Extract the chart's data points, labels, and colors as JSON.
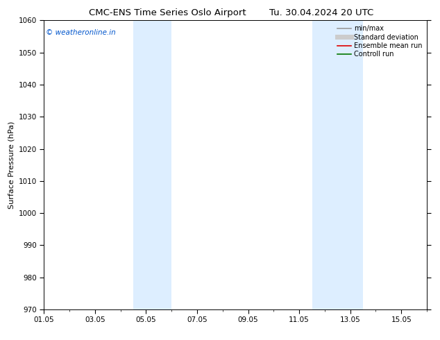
{
  "title": "CMC-ENS Time Series Oslo Airport",
  "title2": "Tu. 30.04.2024 20 UTC",
  "ylabel": "Surface Pressure (hPa)",
  "ylim": [
    970,
    1060
  ],
  "yticks": [
    970,
    980,
    990,
    1000,
    1010,
    1020,
    1030,
    1040,
    1050,
    1060
  ],
  "xlim": [
    0,
    15
  ],
  "shaded_regions": [
    {
      "xstart": 3.5,
      "xend": 5.0
    },
    {
      "xstart": 10.5,
      "xend": 12.5
    }
  ],
  "shade_color": "#ddeeff",
  "background_color": "#ffffff",
  "watermark_text": "© weatheronline.in",
  "watermark_color": "#0055cc",
  "legend_entries": [
    {
      "label": "min/max",
      "color": "#999999",
      "lw": 1.2,
      "linestyle": "-"
    },
    {
      "label": "Standard deviation",
      "color": "#cccccc",
      "lw": 5,
      "linestyle": "-"
    },
    {
      "label": "Ensemble mean run",
      "color": "#dd0000",
      "lw": 1.2,
      "linestyle": "-"
    },
    {
      "label": "Controll run",
      "color": "#007700",
      "lw": 1.2,
      "linestyle": "-"
    }
  ],
  "xtick_positions": [
    0,
    2,
    4,
    6,
    8,
    10,
    12,
    14
  ],
  "xtick_labels": [
    "01.05",
    "03.05",
    "05.05",
    "07.05",
    "09.05",
    "11.05",
    "13.05",
    "15.05"
  ],
  "title_fontsize": 9.5,
  "ylabel_fontsize": 8,
  "tick_fontsize": 7.5,
  "watermark_fontsize": 7.5,
  "legend_fontsize": 7
}
